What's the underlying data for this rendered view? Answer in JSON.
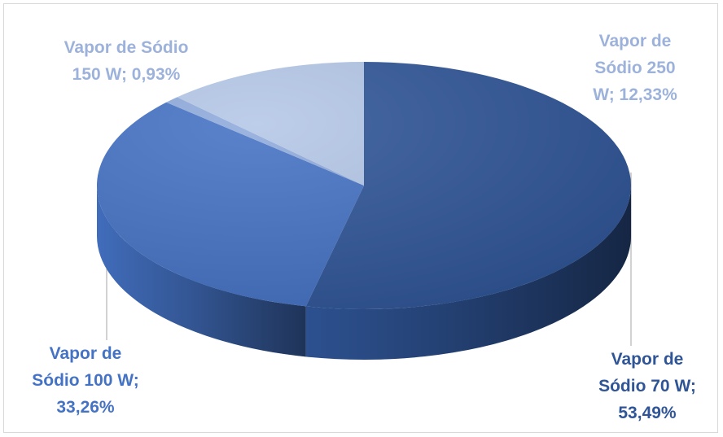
{
  "chart_data": {
    "type": "pie",
    "title": "",
    "slices": [
      {
        "label": "Vapor de Sódio 70 W",
        "value": 53.49,
        "display": "Vapor de\nSódio 70 W;\n53,49%",
        "color": "#2F5597"
      },
      {
        "label": "Vapor de Sódio 100 W",
        "value": 33.26,
        "display": "Vapor de\nSódio 100 W;\n33,26%",
        "color": "#4472C4"
      },
      {
        "label": "Vapor de Sódio 150 W",
        "value": 0.93,
        "display": "Vapor de Sódio\n150 W; 0,93%",
        "color": "#8FAADC"
      },
      {
        "label": "Vapor de Sódio 250 W",
        "value": 12.33,
        "display": "Vapor de\nSódio 250\nW; 12,33%",
        "color": "#B4C7E7"
      }
    ],
    "style": "3d",
    "label_colors": {
      "dark": "#2F5597",
      "light": "#9DB2DB",
      "mid": "#4472C4"
    }
  }
}
